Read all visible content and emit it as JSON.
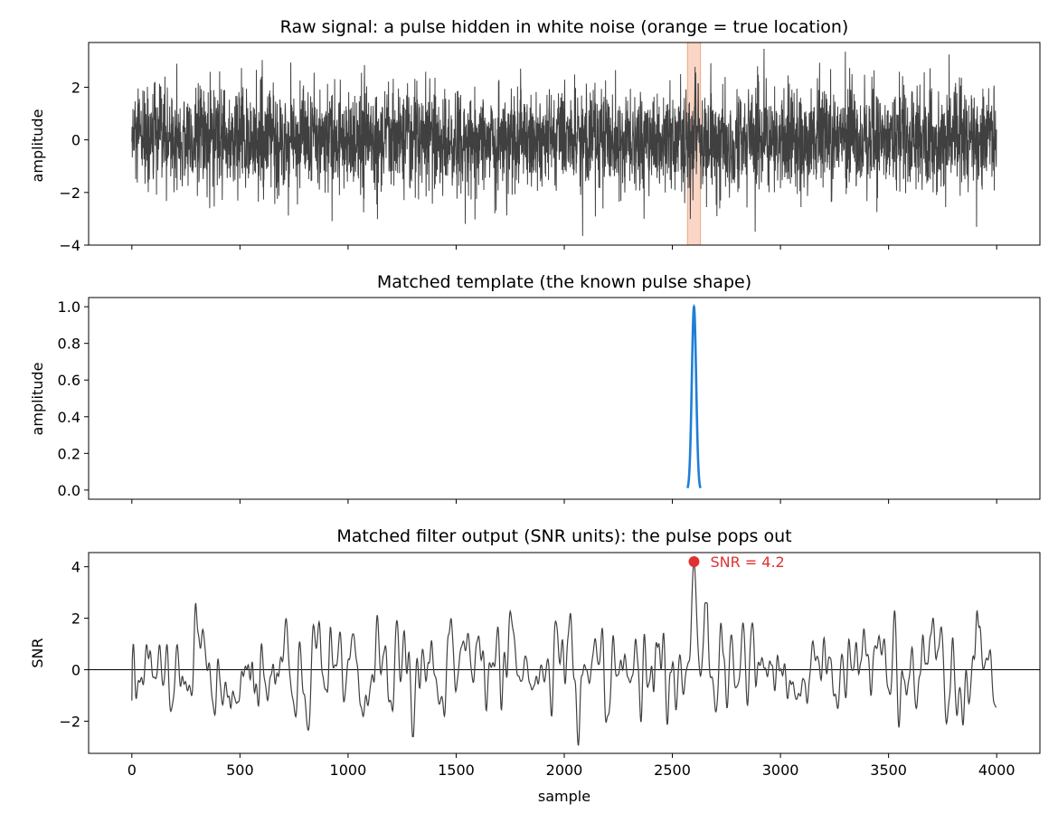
{
  "chart_data": [
    {
      "type": "line",
      "title": "Raw signal: a pulse hidden in white noise (orange = true location)",
      "ylabel": "amplitude",
      "xlabel": "",
      "xlim": [
        -200,
        4200
      ],
      "ylim": [
        -4,
        3.7
      ],
      "yticks": [
        -4,
        -2,
        0,
        2
      ],
      "xticks_visible": false,
      "grid": false,
      "series": [
        {
          "kind": "noise",
          "n": 4000,
          "color": "#404040",
          "noise_sigma": 1.0,
          "pulse_center": 2600,
          "pulse_amplitude": 0.6
        }
      ],
      "highlight_band": {
        "x0": 2570,
        "x1": 2630,
        "color": "#f4a582"
      }
    },
    {
      "type": "line",
      "title": "Matched template (the known pulse shape)",
      "ylabel": "amplitude",
      "xlabel": "",
      "xlim": [
        -200,
        4200
      ],
      "ylim": [
        -0.05,
        1.05
      ],
      "yticks": [
        "0.0",
        "0.2",
        "0.4",
        "0.6",
        "0.8",
        "1.0"
      ],
      "xticks_visible": false,
      "grid": false,
      "series": [
        {
          "kind": "gaussian",
          "center": 2600,
          "sigma": 10,
          "x_start": 2570,
          "x_end": 2630,
          "color": "#1f7fd6"
        }
      ]
    },
    {
      "type": "line",
      "title": "Matched filter output (SNR units): the pulse pops out",
      "ylabel": "SNR",
      "xlabel": "sample",
      "xlim": [
        -200,
        4200
      ],
      "ylim": [
        -3.25,
        4.55
      ],
      "yticks": [
        -2,
        0,
        2,
        4
      ],
      "xticks": [
        0,
        500,
        1000,
        1500,
        2000,
        2500,
        3000,
        3500,
        4000
      ],
      "grid": false,
      "hline": 0,
      "series": [
        {
          "kind": "smooth_noise",
          "n": 4000,
          "color": "#404040",
          "peak_x": 2600,
          "peak_y": 4.2,
          "min_x": 2065,
          "min_y": -2.95
        }
      ],
      "peak_marker": {
        "x": 2600,
        "y": 4.2,
        "color": "#e03131",
        "label": "SNR = 4.2"
      }
    }
  ]
}
